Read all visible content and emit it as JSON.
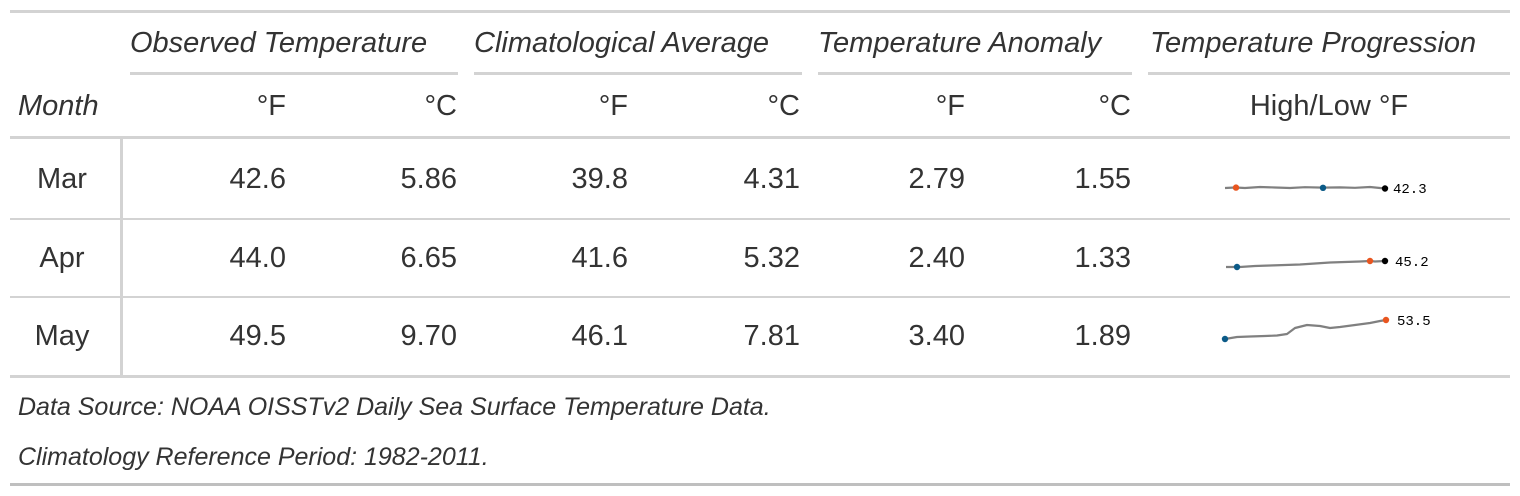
{
  "table": {
    "stub_header": "Month",
    "spanners": {
      "observed": "Observed Temperature",
      "climatology": "Climatological Average",
      "anomaly": "Temperature Anomaly",
      "progression": "Temperature Progression"
    },
    "columns": {
      "obs_f": "°F",
      "obs_c": "°C",
      "clim_f": "°F",
      "clim_c": "°C",
      "anom_f": "°F",
      "anom_c": "°C",
      "progression": "High/Low °F"
    },
    "rows": [
      {
        "month": "Mar",
        "obs_f": "42.6",
        "obs_c": "5.86",
        "clim_f": "39.8",
        "clim_c": "4.31",
        "anom_f": "2.79",
        "anom_c": "1.55",
        "spark_label": "42.3"
      },
      {
        "month": "Apr",
        "obs_f": "44.0",
        "obs_c": "6.65",
        "clim_f": "41.6",
        "clim_c": "5.32",
        "anom_f": "2.40",
        "anom_c": "1.33",
        "spark_label": "45.2"
      },
      {
        "month": "May",
        "obs_f": "49.5",
        "obs_c": "9.70",
        "clim_f": "46.1",
        "clim_c": "7.81",
        "anom_f": "3.40",
        "anom_c": "1.89",
        "spark_label": "53.5"
      }
    ],
    "footnotes": [
      "Data Source: NOAA OISSTv2 Daily Sea Surface Temperature Data.",
      "Climatology Reference Period: 1982-2011."
    ]
  },
  "colors": {
    "line": "#808080",
    "high_marker": "#e8551f",
    "low_marker": "#0b5a87",
    "last_marker": "#000000",
    "rule": "#d3d3d3"
  }
}
